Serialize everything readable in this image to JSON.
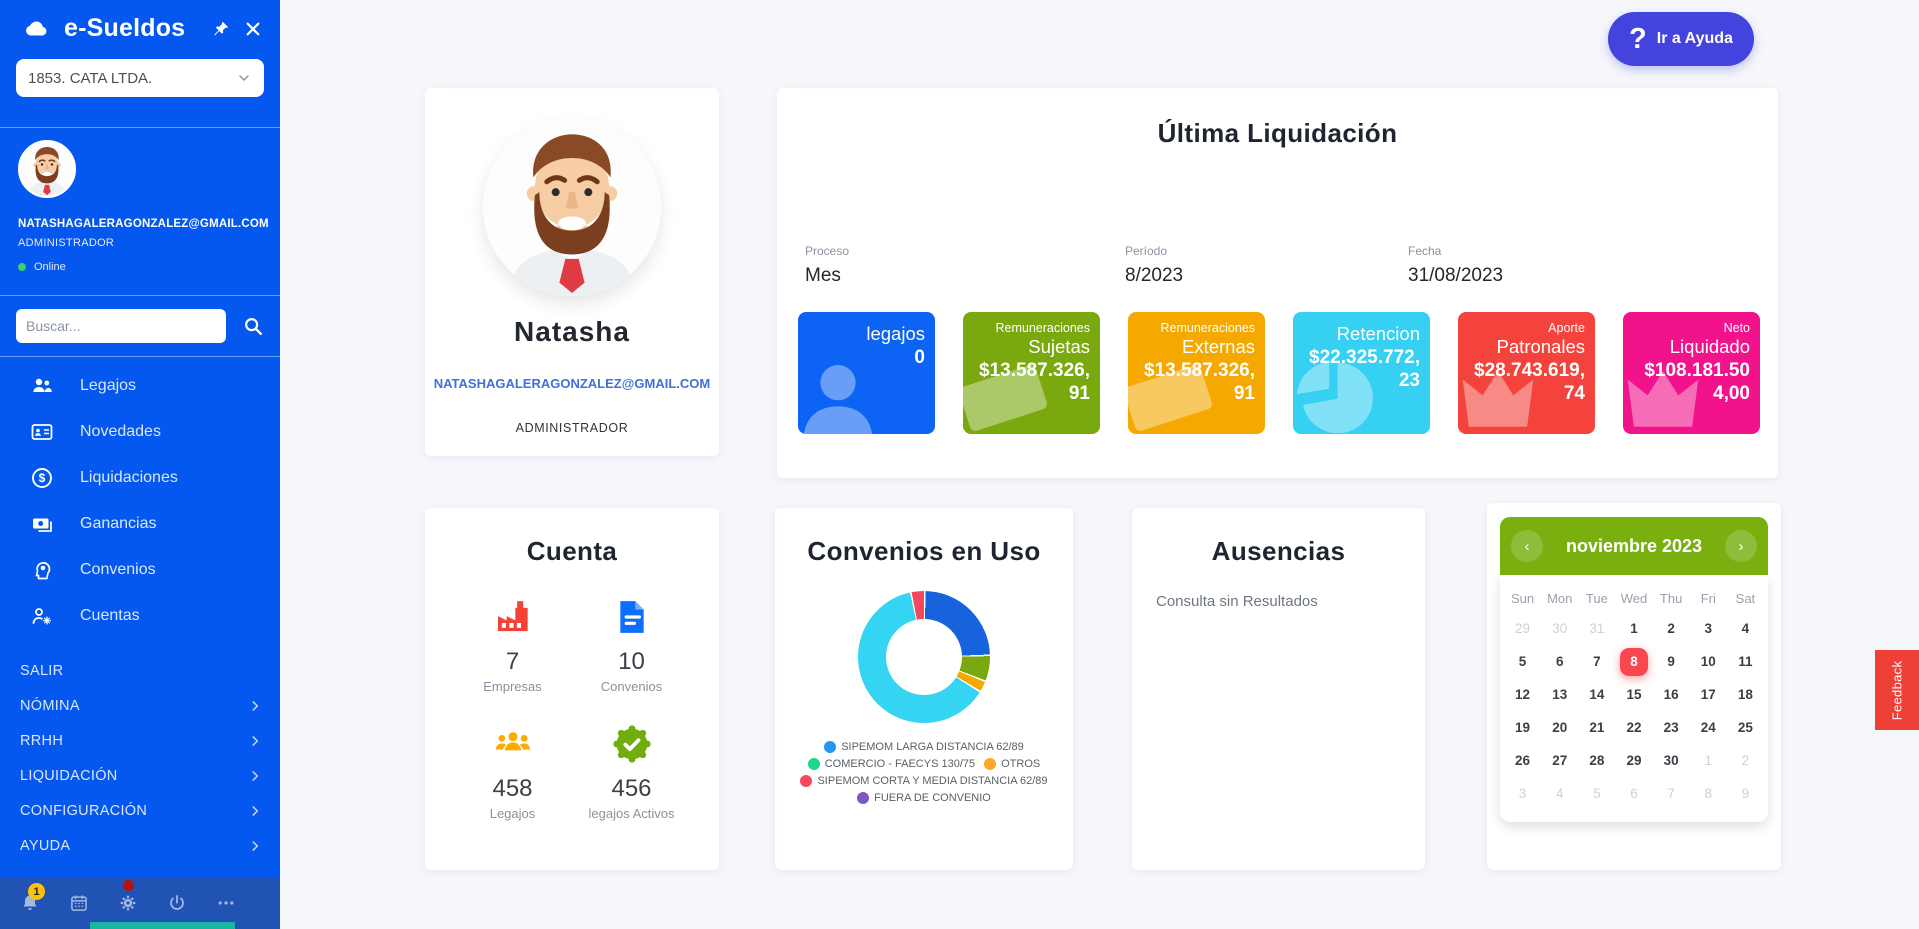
{
  "sidebar": {
    "app_title": "e-Sueldos",
    "company_select": "1853. CATA LTDA.",
    "user": {
      "email": "NATASHAGALERAGONZALEZ@GMAIL.COM",
      "role": "ADMINISTRADOR",
      "status": "Online"
    },
    "search_placeholder": "Buscar...",
    "menu": [
      {
        "icon": "people",
        "label": "Legajos"
      },
      {
        "icon": "id-card",
        "label": "Novedades"
      },
      {
        "icon": "dollar-circle",
        "label": "Liquidaciones"
      },
      {
        "icon": "banknote",
        "label": "Ganancias"
      },
      {
        "icon": "head-gear",
        "label": "Convenios"
      },
      {
        "icon": "person-gear",
        "label": "Cuentas"
      }
    ],
    "salir_label": "SALIR",
    "sections": [
      "NÓMINA",
      "RRHH",
      "LIQUIDACIÓN",
      "CONFIGURACIÓN",
      "AYUDA"
    ],
    "footer_icons": [
      {
        "icon": "bell",
        "badge": "1"
      },
      {
        "icon": "calendar"
      },
      {
        "icon": "gear",
        "dot": true
      },
      {
        "icon": "power"
      },
      {
        "icon": "ellipsis"
      }
    ],
    "colors": {
      "background": "#0458f0",
      "footer": "#2153b5",
      "badge": "#ffc107",
      "online_dot": "#39d06f"
    }
  },
  "header": {
    "help_button": "Ir a Ayuda",
    "help_color": "#4343de"
  },
  "profile_card": {
    "name": "Natasha",
    "email": "NATASHAGALERAGONZALEZ@GMAIL.COM",
    "role": "ADMINISTRADOR"
  },
  "liquidacion_card": {
    "title": "Última Liquidación",
    "fields": [
      {
        "label": "Proceso",
        "value": "Mes"
      },
      {
        "label": "Período",
        "value": "8/2023"
      },
      {
        "label": "Fecha",
        "value": "31/08/2023"
      }
    ],
    "stats": [
      {
        "label": "",
        "name": "legajos",
        "value": "0",
        "color": "#0d63f3",
        "icon": "person"
      },
      {
        "label": "Remuneraciones",
        "name": "Sujetas",
        "value": "$13.587.326,91",
        "color": "#7aa90f",
        "icon": "banknote-wm"
      },
      {
        "label": "Remuneraciones",
        "name": "Externas",
        "value": "$13.587.326,91",
        "color": "#f5a800",
        "icon": "banknote-wm"
      },
      {
        "label": "",
        "name": "Retencion",
        "value": "$22.325.772,23",
        "color": "#35d0f2",
        "icon": "pie"
      },
      {
        "label": "Aporte",
        "name": "Patronales",
        "value": "$28.743.619,74",
        "color": "#f4433c",
        "icon": "crown"
      },
      {
        "label": "Neto",
        "name": "Liquidado",
        "value": "$108.181.504,00",
        "color": "#f2128c",
        "icon": "crown"
      }
    ]
  },
  "cuenta_card": {
    "title": "Cuenta",
    "items": [
      {
        "icon": "factory",
        "color": "#f44336",
        "value": "7",
        "label": "Empresas"
      },
      {
        "icon": "document",
        "color": "#0d6efd",
        "value": "10",
        "label": "Convenios"
      },
      {
        "icon": "people-trio",
        "color": "#ffaa00",
        "value": "458",
        "label": "Legajos"
      },
      {
        "icon": "badge-check",
        "color": "#6fae0d",
        "value": "456",
        "label": "legajos Activos"
      }
    ]
  },
  "chart_data": {
    "type": "pie",
    "title": "Convenios en Uso",
    "legend_position": "bottom",
    "legend": [
      {
        "label": "SIPEMOM LARGA DISTANCIA 62/89",
        "color": "#2196f3"
      },
      {
        "label": "COMERCIO - FAECYS 130/75",
        "color": "#1fd68f"
      },
      {
        "label": "OTROS",
        "color": "#ffa726"
      },
      {
        "label": "SIPEMOM CORTA Y MEDIA DISTANCIA 62/89",
        "color": "#f8485e"
      },
      {
        "label": "FUERA DE CONVENIO",
        "color": "#7e57c2"
      }
    ],
    "arcs": [
      {
        "color": "#1663dd",
        "percent": 24
      },
      {
        "color": "#7aa90f",
        "percent": 6
      },
      {
        "color": "#f5a800",
        "percent": 2.4
      },
      {
        "color": "#35d4f2",
        "percent": 62.6
      },
      {
        "color": "#f4485c",
        "percent": 3
      }
    ]
  },
  "ausencias_card": {
    "title": "Ausencias",
    "empty_text": "Consulta sin Resultados"
  },
  "calendar": {
    "month_label": "noviembre 2023",
    "header_color": "#79b00f",
    "selected_color": "#f9474f",
    "day_headers": [
      "Sun",
      "Mon",
      "Tue",
      "Wed",
      "Thu",
      "Fri",
      "Sat"
    ],
    "cells": [
      {
        "d": "29",
        "muted": true
      },
      {
        "d": "30",
        "muted": true
      },
      {
        "d": "31",
        "muted": true
      },
      {
        "d": "1"
      },
      {
        "d": "2"
      },
      {
        "d": "3"
      },
      {
        "d": "4"
      },
      {
        "d": "5"
      },
      {
        "d": "6"
      },
      {
        "d": "7"
      },
      {
        "d": "8",
        "selected": true
      },
      {
        "d": "9"
      },
      {
        "d": "10"
      },
      {
        "d": "11"
      },
      {
        "d": "12"
      },
      {
        "d": "13"
      },
      {
        "d": "14"
      },
      {
        "d": "15"
      },
      {
        "d": "16"
      },
      {
        "d": "17"
      },
      {
        "d": "18"
      },
      {
        "d": "19"
      },
      {
        "d": "20"
      },
      {
        "d": "21"
      },
      {
        "d": "22"
      },
      {
        "d": "23"
      },
      {
        "d": "24"
      },
      {
        "d": "25"
      },
      {
        "d": "26"
      },
      {
        "d": "27"
      },
      {
        "d": "28"
      },
      {
        "d": "29"
      },
      {
        "d": "30"
      },
      {
        "d": "1",
        "muted": true
      },
      {
        "d": "2",
        "muted": true
      },
      {
        "d": "3",
        "muted": true
      },
      {
        "d": "4",
        "muted": true
      },
      {
        "d": "5",
        "muted": true
      },
      {
        "d": "6",
        "muted": true
      },
      {
        "d": "7",
        "muted": true
      },
      {
        "d": "8",
        "muted": true
      },
      {
        "d": "9",
        "muted": true
      }
    ]
  },
  "feedback_label": "Feedback"
}
